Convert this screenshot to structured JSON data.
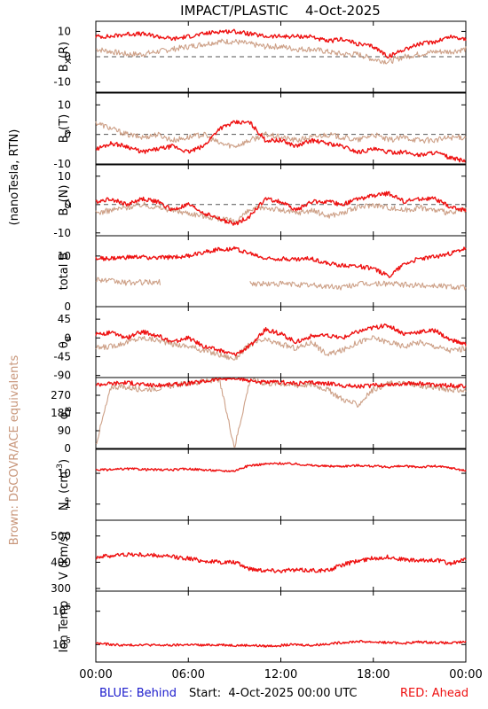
{
  "title": "IMPACT/PLASTIC    4-Oct-2025",
  "left_label_units": "(nanoTesla, RTN)",
  "left_label_brown": "Brown: DSCOVR/ACE equivalents",
  "footer": {
    "blue": "BLUE: Behind",
    "start": "Start:  4-Oct-2025 00:00 UTC",
    "red": "RED: Ahead"
  },
  "colors": {
    "red": "#ee1111",
    "brown": "#c8967a",
    "blue": "#1a1acc",
    "axis": "#000000",
    "zero_line": "#555555"
  },
  "chart_data": [
    {
      "type": "line",
      "id": "bx",
      "ylabel": "B_X(R)",
      "ylim": [
        -14,
        14
      ],
      "yticks": [
        10,
        0,
        -10
      ],
      "yticklabels": [
        "10",
        "0",
        "-10"
      ],
      "zero_line": true,
      "series": [
        {
          "name": "Ahead",
          "color": "red",
          "x": [
            0,
            1,
            2,
            3,
            4,
            5,
            6,
            7,
            8,
            9,
            10,
            11,
            12,
            13,
            14,
            15,
            16,
            17,
            18,
            19,
            20,
            21,
            22,
            23,
            24
          ],
          "values": [
            8,
            8,
            9,
            9,
            8,
            7,
            8,
            9,
            10,
            10,
            9,
            8,
            8,
            8,
            8,
            6,
            7,
            5,
            4,
            0,
            3,
            5,
            6,
            8,
            7
          ]
        },
        {
          "name": "DSCOVR/ACE",
          "color": "brown",
          "x": [
            0,
            1,
            2,
            3,
            4,
            5,
            6,
            7,
            8,
            9,
            10,
            11,
            12,
            13,
            14,
            15,
            16,
            17,
            18,
            19,
            20,
            21,
            22,
            23,
            24
          ],
          "values": [
            3,
            2,
            1,
            1,
            2,
            3,
            4,
            5,
            6,
            6,
            5,
            4,
            4,
            3,
            3,
            2,
            1,
            1,
            -1,
            -2,
            0,
            1,
            2,
            2,
            3
          ]
        }
      ]
    },
    {
      "type": "line",
      "id": "by",
      "ylabel": "B_Y(T)",
      "ylim": [
        -10,
        14
      ],
      "yticks": [
        10,
        0,
        -10
      ],
      "yticklabels": [
        "10",
        "0",
        "-10"
      ],
      "zero_line": true,
      "series": [
        {
          "name": "Ahead",
          "color": "red",
          "x": [
            0,
            1,
            2,
            3,
            4,
            5,
            6,
            7,
            8,
            9,
            10,
            11,
            12,
            13,
            14,
            15,
            16,
            17,
            18,
            19,
            20,
            21,
            22,
            23,
            24
          ],
          "values": [
            -5,
            -3,
            -4,
            -6,
            -5,
            -4,
            -6,
            -4,
            2,
            4,
            4,
            -2,
            -2,
            -4,
            -2,
            -3,
            -4,
            -6,
            -5,
            -6,
            -6,
            -7,
            -6,
            -8,
            -9
          ]
        },
        {
          "name": "DSCOVR/ACE",
          "color": "brown",
          "x": [
            0,
            1,
            2,
            3,
            4,
            5,
            6,
            7,
            8,
            9,
            10,
            11,
            12,
            13,
            14,
            15,
            16,
            17,
            18,
            19,
            20,
            21,
            22,
            23,
            24
          ],
          "values": [
            4,
            2,
            0,
            -1,
            0,
            -2,
            -1,
            0,
            -3,
            -4,
            -2,
            0,
            -1,
            -2,
            -1,
            0,
            -1,
            -2,
            0,
            -2,
            -1,
            -2,
            -2,
            -1,
            -1
          ]
        }
      ]
    },
    {
      "type": "line",
      "id": "bz",
      "ylabel": "B_Z(N)",
      "ylim": [
        -11,
        14
      ],
      "yticks": [
        10,
        0,
        -10
      ],
      "yticklabels": [
        "10",
        "0",
        "-10"
      ],
      "zero_line": true,
      "series": [
        {
          "name": "Ahead",
          "color": "red",
          "x": [
            0,
            1,
            2,
            3,
            4,
            5,
            6,
            7,
            8,
            9,
            10,
            11,
            12,
            13,
            14,
            15,
            16,
            17,
            18,
            19,
            20,
            21,
            22,
            23,
            24
          ],
          "values": [
            1,
            2,
            0,
            2,
            1,
            -2,
            0,
            -3,
            -5,
            -7,
            -4,
            2,
            1,
            -2,
            1,
            1,
            0,
            2,
            3,
            4,
            1,
            2,
            2,
            -1,
            -2
          ]
        },
        {
          "name": "DSCOVR/ACE",
          "color": "brown",
          "x": [
            0,
            1,
            2,
            3,
            4,
            5,
            6,
            7,
            8,
            9,
            10,
            11,
            12,
            13,
            14,
            15,
            16,
            17,
            18,
            19,
            20,
            21,
            22,
            23,
            24
          ],
          "values": [
            -3,
            -2,
            -1,
            0,
            -1,
            -2,
            -3,
            -4,
            -5,
            -6,
            -2,
            -1,
            -2,
            -3,
            -2,
            -4,
            -3,
            -1,
            0,
            -1,
            -2,
            -1,
            -2,
            -3,
            -2
          ]
        }
      ]
    },
    {
      "type": "line",
      "id": "btot",
      "ylabel": "total B",
      "ylim": [
        0,
        14
      ],
      "yticks": [
        10,
        0
      ],
      "yticklabels": [
        "10",
        "0"
      ],
      "zero_line": false,
      "series": [
        {
          "name": "Ahead",
          "color": "red",
          "x": [
            0,
            1,
            2,
            3,
            4,
            5,
            6,
            7,
            8,
            9,
            10,
            11,
            12,
            13,
            14,
            15,
            16,
            17,
            18,
            19,
            20,
            21,
            22,
            23,
            24
          ],
          "values": [
            9.5,
            9.5,
            9.7,
            9.8,
            9.6,
            9.8,
            10,
            10.8,
            11.3,
            11.5,
            10.5,
            9.5,
            9.5,
            9.3,
            9.5,
            8.5,
            8.2,
            8,
            7.5,
            6,
            8.5,
            9.5,
            9.8,
            10.5,
            11.5
          ]
        },
        {
          "name": "DSCOVR/ACE",
          "color": "brown",
          "x": [
            0,
            1,
            2,
            3,
            4,
            10,
            11,
            12,
            13,
            14,
            15,
            16,
            17,
            18,
            19,
            20,
            21,
            22,
            23,
            24
          ],
          "values": [
            5.5,
            5,
            4.7,
            4.8,
            4.8,
            4.6,
            4.5,
            4.5,
            4.4,
            4.2,
            4,
            3.8,
            4.5,
            4.5,
            4.6,
            4.3,
            4.2,
            4.2,
            4,
            3.8
          ]
        }
      ]
    },
    {
      "type": "line",
      "id": "theta",
      "ylabel": "θ_B",
      "ylim": [
        -95,
        75
      ],
      "yticks": [
        45,
        0,
        -45,
        -90
      ],
      "yticklabels": [
        "45",
        "0",
        "-45",
        "-90"
      ],
      "zero_line": false,
      "series": [
        {
          "name": "Ahead",
          "color": "red",
          "x": [
            0,
            1,
            2,
            3,
            4,
            5,
            6,
            7,
            8,
            9,
            10,
            11,
            12,
            13,
            14,
            15,
            16,
            17,
            18,
            19,
            20,
            21,
            22,
            23,
            24
          ],
          "values": [
            10,
            12,
            0,
            15,
            5,
            -10,
            0,
            -20,
            -30,
            -40,
            -20,
            20,
            10,
            -10,
            5,
            5,
            0,
            15,
            25,
            30,
            10,
            15,
            18,
            -5,
            -15
          ]
        },
        {
          "name": "DSCOVR/ACE",
          "color": "brown",
          "x": [
            0,
            1,
            2,
            3,
            4,
            5,
            6,
            7,
            8,
            9,
            10,
            11,
            12,
            13,
            14,
            15,
            16,
            17,
            18,
            19,
            20,
            21,
            22,
            23,
            24
          ],
          "values": [
            -25,
            -20,
            -10,
            0,
            -5,
            -15,
            -20,
            -30,
            -40,
            -50,
            -15,
            -5,
            -15,
            -25,
            -10,
            -40,
            -30,
            -10,
            0,
            -10,
            -20,
            -10,
            -20,
            -30,
            -25
          ]
        }
      ]
    },
    {
      "type": "line",
      "id": "phi",
      "ylabel": "φ_B",
      "ylim": [
        0,
        360
      ],
      "yticks": [
        270,
        180,
        90,
        0
      ],
      "yticklabels": [
        "270",
        "180",
        "90",
        "0"
      ],
      "zero_line": false,
      "series": [
        {
          "name": "Ahead",
          "color": "red",
          "x": [
            0,
            1,
            2,
            3,
            4,
            5,
            6,
            7,
            8,
            9,
            10,
            11,
            12,
            13,
            14,
            15,
            16,
            17,
            18,
            19,
            20,
            21,
            22,
            23,
            24
          ],
          "values": [
            325,
            330,
            335,
            325,
            320,
            325,
            330,
            340,
            355,
            355,
            345,
            335,
            335,
            330,
            335,
            330,
            320,
            315,
            320,
            325,
            330,
            330,
            320,
            320,
            315
          ]
        },
        {
          "name": "DSCOVR/ACE",
          "color": "brown",
          "x": [
            0,
            1,
            2,
            3,
            4,
            5,
            6,
            7,
            8,
            9,
            10,
            11,
            12,
            13,
            14,
            15,
            16,
            17,
            18,
            19,
            20,
            21,
            22,
            23,
            24
          ],
          "values": [
            20,
            315,
            310,
            300,
            305,
            320,
            330,
            340,
            350,
            5,
            350,
            330,
            330,
            320,
            325,
            300,
            250,
            220,
            300,
            330,
            330,
            320,
            310,
            300,
            290
          ]
        }
      ]
    },
    {
      "type": "line",
      "id": "np",
      "ylabel": "N_P (cm^-3)",
      "yscale": "log",
      "ylim": [
        0.3,
        60
      ],
      "yticks": [
        10,
        1
      ],
      "yticklabels": [
        "10",
        "1"
      ],
      "zero_line": false,
      "series": [
        {
          "name": "Ahead",
          "color": "red",
          "x": [
            0,
            1,
            2,
            3,
            4,
            5,
            6,
            7,
            8,
            9,
            10,
            11,
            12,
            13,
            14,
            15,
            16,
            17,
            18,
            19,
            20,
            21,
            22,
            23,
            24
          ],
          "values": [
            13,
            13,
            14,
            13.5,
            13,
            13,
            14,
            13,
            12,
            12,
            18,
            20,
            21,
            20,
            18,
            17,
            17,
            18,
            17,
            16,
            17,
            16,
            17,
            15,
            12
          ]
        }
      ]
    },
    {
      "type": "line",
      "id": "v",
      "ylabel": "V (km/s)",
      "ylim": [
        290,
        560
      ],
      "yticks": [
        500,
        400,
        300
      ],
      "yticklabels": [
        "500",
        "400",
        "300"
      ],
      "zero_line": false,
      "series": [
        {
          "name": "Ahead",
          "color": "red",
          "x": [
            0,
            1,
            2,
            3,
            4,
            5,
            6,
            7,
            8,
            9,
            10,
            11,
            12,
            13,
            14,
            15,
            16,
            17,
            18,
            19,
            20,
            21,
            22,
            23,
            24
          ],
          "values": [
            420,
            425,
            430,
            428,
            425,
            420,
            415,
            405,
            400,
            400,
            375,
            370,
            368,
            370,
            370,
            368,
            390,
            405,
            415,
            420,
            410,
            405,
            410,
            395,
            410
          ]
        }
      ]
    },
    {
      "type": "line",
      "id": "temp",
      "ylabel": "Ion Temp",
      "yscale": "log",
      "ylim": [
        30000,
        4000000
      ],
      "yticks": [
        1000000,
        100000
      ],
      "yticklabels": [
        "10^6",
        "10^5"
      ],
      "zero_line": false,
      "series": [
        {
          "name": "Ahead",
          "color": "red",
          "x": [
            0,
            1,
            2,
            3,
            4,
            5,
            6,
            7,
            8,
            9,
            10,
            11,
            12,
            13,
            14,
            15,
            16,
            17,
            18,
            19,
            20,
            21,
            22,
            23,
            24
          ],
          "values": [
            110000,
            100000,
            95000,
            100000,
            95000,
            95000,
            100000,
            95000,
            100000,
            95000,
            95000,
            90000,
            95000,
            100000,
            95000,
            105000,
            115000,
            125000,
            120000,
            115000,
            110000,
            120000,
            115000,
            110000,
            120000
          ]
        }
      ]
    }
  ],
  "x_axis": {
    "range_hours": [
      0,
      24
    ],
    "tick_hours": [
      0,
      6,
      12,
      18,
      24
    ],
    "tick_labels": [
      "00:00",
      "06:00",
      "12:00",
      "18:00",
      "00:00"
    ]
  }
}
